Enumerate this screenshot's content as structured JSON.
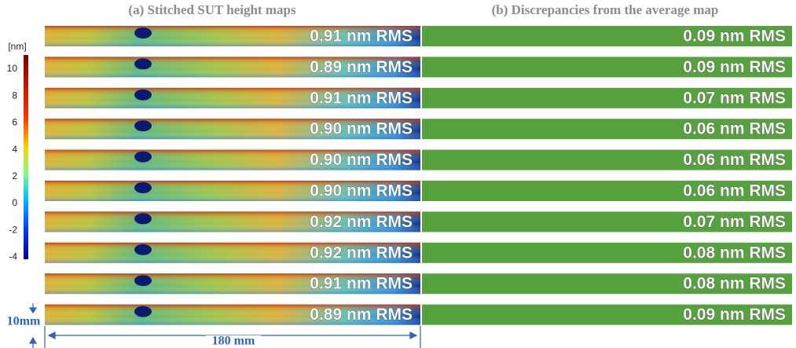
{
  "panels": [
    {
      "title": "(a) Stitched SUT height maps"
    },
    {
      "title": "(b) Discrepancies from the average map"
    }
  ],
  "colorbar": {
    "unit": "[nm]",
    "ticks": [
      10,
      8,
      6,
      4,
      2,
      0,
      -2,
      -4
    ]
  },
  "rows": [
    {
      "left": "0.91 nm RMS",
      "right": "0.09 nm RMS"
    },
    {
      "left": "0.89 nm RMS",
      "right": "0.09 nm RMS"
    },
    {
      "left": "0.91 nm RMS",
      "right": "0.07 nm RMS"
    },
    {
      "left": "0.90 nm RMS",
      "right": "0.06 nm RMS"
    },
    {
      "left": "0.90 nm RMS",
      "right": "0.06 nm RMS"
    },
    {
      "left": "0.90 nm RMS",
      "right": "0.06 nm RMS"
    },
    {
      "left": "0.92 nm RMS",
      "right": "0.07 nm RMS"
    },
    {
      "left": "0.92 nm RMS",
      "right": "0.08 nm RMS"
    },
    {
      "left": "0.91 nm RMS",
      "right": "0.08 nm RMS"
    },
    {
      "left": "0.89 nm RMS",
      "right": "0.09 nm RMS"
    }
  ],
  "scale": {
    "height": "10mm",
    "length": "180 mm"
  }
}
